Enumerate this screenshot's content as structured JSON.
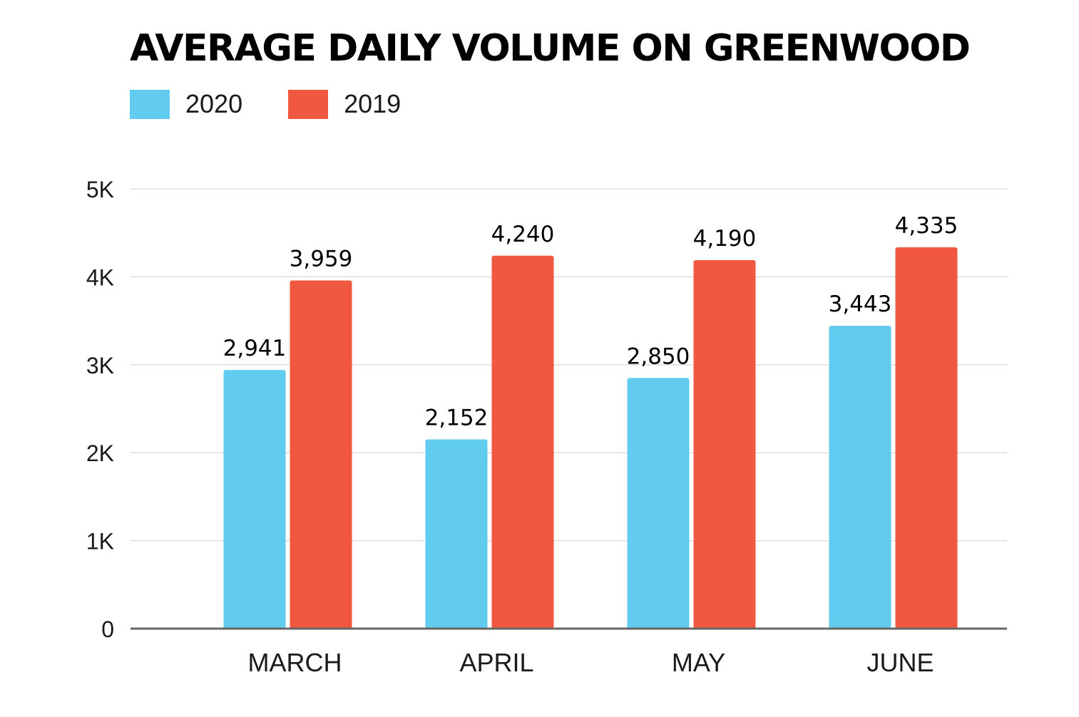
{
  "chart_data": {
    "type": "bar",
    "title": "AVERAGE DAILY VOLUME ON GREENWOOD",
    "categories": [
      "MARCH",
      "APRIL",
      "MAY",
      "JUNE"
    ],
    "series": [
      {
        "name": "2020",
        "color": "#62CBF0",
        "values": [
          2941,
          2152,
          2850,
          3443
        ],
        "labels": [
          "2,941",
          "2,152",
          "2,850",
          "3,443"
        ]
      },
      {
        "name": "2019",
        "color": "#F0583F",
        "values": [
          3959,
          4240,
          4190,
          4335
        ],
        "labels": [
          "3,959",
          "4,240",
          "4,190",
          "4,335"
        ]
      }
    ],
    "ylim": [
      0,
      5000
    ],
    "yticks": [
      0,
      1000,
      2000,
      3000,
      4000,
      5000
    ],
    "ytick_labels": [
      "0",
      "1K",
      "2K",
      "3K",
      "4K",
      "5K"
    ],
    "xlabel": "",
    "ylabel": "",
    "grid": true,
    "legend_position": "top-left"
  }
}
